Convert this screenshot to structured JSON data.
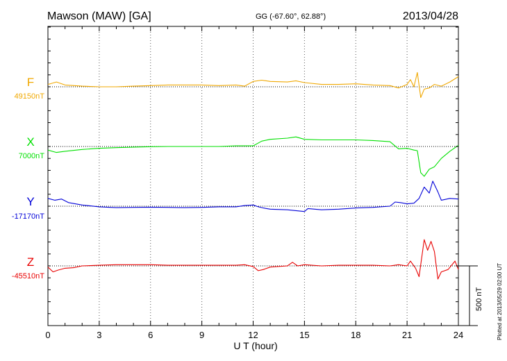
{
  "header": {
    "station": "Mawson (MAW)  [GA]",
    "coords": "GG (-67.60°,  62.88°)",
    "date": "2013/04/28"
  },
  "scale_label": "500 nT",
  "plotted_note": "Plotted at 2013/05/29 02:00 UT",
  "colors": {
    "F": "#f0a800",
    "X": "#00e000",
    "Y": "#0000d8",
    "Z": "#e80000"
  },
  "chart_data": {
    "type": "line",
    "xlabel": "U T (hour)",
    "xlim": [
      0,
      24
    ],
    "xticks": [
      "0",
      "3",
      "6",
      "9",
      "12",
      "15",
      "18",
      "21",
      "24"
    ],
    "grid": "dotted vertical every 3 h",
    "scale_bar_nT": 500,
    "series": [
      {
        "name": "F",
        "baseline_label": "49150nT",
        "x": [
          0,
          0.5,
          1,
          2,
          3,
          4,
          5,
          6,
          7,
          8,
          9,
          10,
          11,
          11.5,
          12,
          12.5,
          13,
          14,
          14.5,
          15,
          16,
          17,
          18,
          19,
          20,
          20.5,
          21,
          21.2,
          21.4,
          21.6,
          21.8,
          22,
          22.3,
          22.6,
          23,
          23.5,
          24
        ],
        "values": [
          49170,
          49190,
          49165,
          49155,
          49150,
          49150,
          49155,
          49160,
          49165,
          49165,
          49165,
          49160,
          49165,
          49155,
          49195,
          49205,
          49195,
          49190,
          49200,
          49185,
          49170,
          49170,
          49175,
          49165,
          49160,
          49140,
          49170,
          49210,
          49150,
          49270,
          49060,
          49130,
          49140,
          49170,
          49155,
          49190,
          49235
        ]
      },
      {
        "name": "X",
        "baseline_label": "7000nT",
        "x": [
          0,
          0.5,
          1,
          2,
          3,
          4,
          5,
          6,
          7,
          8,
          9,
          10,
          11,
          12,
          12.5,
          13,
          14,
          14.5,
          15,
          16,
          17,
          18,
          19,
          20,
          20.5,
          21,
          21.4,
          21.6,
          21.8,
          22,
          22.3,
          22.6,
          23,
          23.5,
          24
        ],
        "values": [
          6970,
          6950,
          6960,
          6975,
          6985,
          6990,
          6995,
          6998,
          7000,
          7000,
          7000,
          7000,
          7005,
          7005,
          7045,
          7060,
          7070,
          7080,
          7060,
          7055,
          7055,
          7055,
          7050,
          7040,
          6980,
          6985,
          6970,
          6965,
          6780,
          6750,
          6810,
          6830,
          6900,
          6960,
          7010
        ]
      },
      {
        "name": "Y",
        "baseline_label": "-17170nT",
        "x": [
          0,
          0.4,
          0.8,
          1.2,
          2,
          3,
          4,
          5,
          6,
          7,
          8,
          9,
          10,
          11,
          11.5,
          12,
          12.3,
          12.6,
          13,
          14,
          15,
          15.2,
          16,
          17,
          18,
          19,
          20,
          20.3,
          20.6,
          21,
          21.4,
          21.7,
          22,
          22.3,
          22.5,
          22.8,
          23,
          23.5,
          24
        ],
        "values": [
          -17105,
          -17120,
          -17110,
          -17140,
          -17160,
          -17175,
          -17182,
          -17180,
          -17178,
          -17180,
          -17182,
          -17180,
          -17175,
          -17175,
          -17165,
          -17160,
          -17175,
          -17185,
          -17195,
          -17200,
          -17215,
          -17190,
          -17200,
          -17195,
          -17185,
          -17180,
          -17170,
          -17135,
          -17140,
          -17150,
          -17145,
          -17105,
          -17010,
          -17060,
          -16960,
          -17050,
          -17120,
          -17105,
          -17110
        ]
      },
      {
        "name": "Z",
        "baseline_label": "-45510nT",
        "x": [
          0,
          0.3,
          0.6,
          1,
          1.5,
          2,
          3,
          4,
          5,
          6,
          7,
          8,
          9,
          10,
          11,
          11.5,
          12,
          12.3,
          12.6,
          13,
          14,
          14.3,
          14.6,
          15,
          16,
          17,
          18,
          19,
          20,
          20.5,
          21,
          21.2,
          21.5,
          21.7,
          22,
          22.2,
          22.4,
          22.6,
          22.8,
          23,
          23.4,
          23.8,
          24
        ],
        "values": [
          -45520,
          -45560,
          -45545,
          -45530,
          -45525,
          -45510,
          -45505,
          -45500,
          -45500,
          -45500,
          -45505,
          -45505,
          -45505,
          -45505,
          -45505,
          -45500,
          -45515,
          -45550,
          -45540,
          -45520,
          -45510,
          -45480,
          -45510,
          -45500,
          -45510,
          -45505,
          -45505,
          -45505,
          -45510,
          -45500,
          -45510,
          -45470,
          -45530,
          -45600,
          -45290,
          -45380,
          -45305,
          -45390,
          -45620,
          -45560,
          -45540,
          -45470,
          -45540
        ]
      }
    ]
  }
}
